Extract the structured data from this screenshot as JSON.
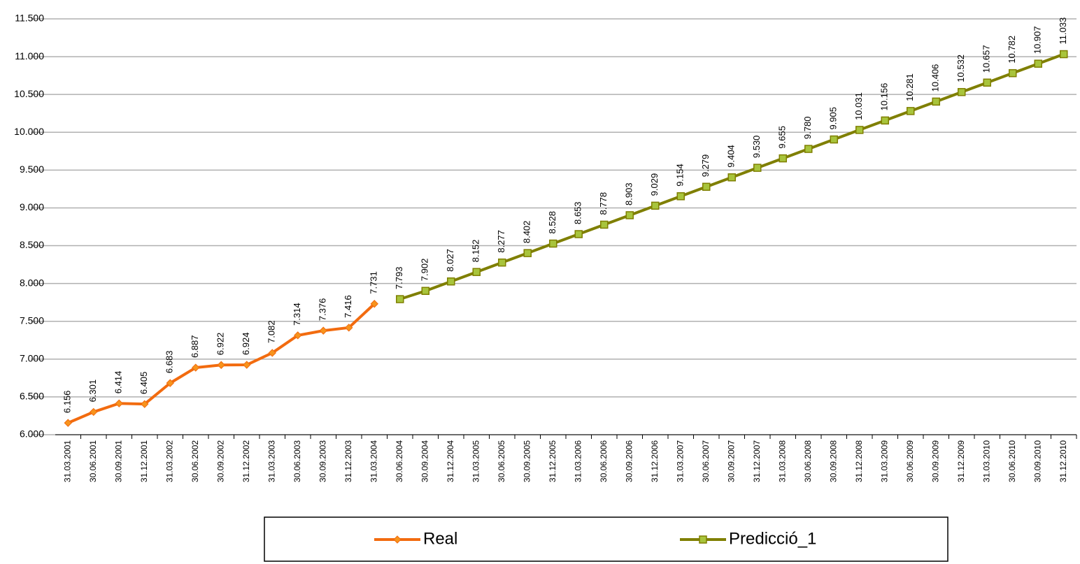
{
  "chart_data": {
    "type": "line",
    "categories": [
      "31.03.2001",
      "30.06.2001",
      "30.09.2001",
      "31.12.2001",
      "31.03.2002",
      "30.06.2002",
      "30.09.2002",
      "31.12.2002",
      "31.03.2003",
      "30.06.2003",
      "30.09.2003",
      "31.12.2003",
      "31.03.2004",
      "30.06.2004",
      "30.09.2004",
      "31.12.2004",
      "31.03.2005",
      "30.06.2005",
      "30.09.2005",
      "31.12.2005",
      "31.03.2006",
      "30.06.2006",
      "30.09.2006",
      "31.12.2006",
      "31.03.2007",
      "30.06.2007",
      "30.09.2007",
      "31.12.2007",
      "31.03.2008",
      "30.06.2008",
      "30.09.2008",
      "31.12.2008",
      "31.03.2009",
      "30.06.2009",
      "30.09.2009",
      "31.12.2009",
      "31.03.2010",
      "30.06.2010",
      "30.09.2010",
      "31.12.2010"
    ],
    "series": [
      {
        "name": "Real",
        "color": "#f26b0f",
        "marker": "diamond",
        "marker_color": "#f7941d",
        "values": [
          6156,
          6301,
          6414,
          6405,
          6683,
          6887,
          6922,
          6924,
          7082,
          7314,
          7376,
          7416,
          7731,
          null,
          null,
          null,
          null,
          null,
          null,
          null,
          null,
          null,
          null,
          null,
          null,
          null,
          null,
          null,
          null,
          null,
          null,
          null,
          null,
          null,
          null,
          null,
          null,
          null,
          null,
          null
        ],
        "value_labels": [
          "6.156",
          "6.301",
          "6.414",
          "6.405",
          "6.683",
          "6.887",
          "6.922",
          "6.924",
          "7.082",
          "7.314",
          "7.376",
          "7.416",
          "7.731",
          null,
          null,
          null,
          null,
          null,
          null,
          null,
          null,
          null,
          null,
          null,
          null,
          null,
          null,
          null,
          null,
          null,
          null,
          null,
          null,
          null,
          null,
          null,
          null,
          null,
          null,
          null
        ]
      },
      {
        "name": "Predicció_1",
        "color": "#7f7f00",
        "marker": "square",
        "marker_color": "#a8c43c",
        "values": [
          null,
          null,
          null,
          null,
          null,
          null,
          null,
          null,
          null,
          null,
          null,
          null,
          null,
          7793,
          7902,
          8027,
          8152,
          8277,
          8402,
          8528,
          8653,
          8778,
          8903,
          9029,
          9154,
          9279,
          9404,
          9530,
          9655,
          9780,
          9905,
          10031,
          10156,
          10281,
          10406,
          10532,
          10657,
          10782,
          10907,
          11033
        ],
        "value_labels": [
          null,
          null,
          null,
          null,
          null,
          null,
          null,
          null,
          null,
          null,
          null,
          null,
          null,
          "7.793",
          "7.902",
          "8.027",
          "8.152",
          "8.277",
          "8.402",
          "8.528",
          "8.653",
          "8.778",
          "8.903",
          "9.029",
          "9.154",
          "9.279",
          "9.404",
          "9.530",
          "9.655",
          "9.780",
          "9.905",
          "10.031",
          "10.156",
          "10.281",
          "10.406",
          "10.532",
          "10.657",
          "10.782",
          "10.907",
          "11.033"
        ]
      }
    ],
    "ylim": [
      6000,
      11500
    ],
    "yticks": [
      {
        "value": 6000,
        "label": "6.000"
      },
      {
        "value": 6500,
        "label": "6.500"
      },
      {
        "value": 7000,
        "label": "7.000"
      },
      {
        "value": 7500,
        "label": "7.500"
      },
      {
        "value": 8000,
        "label": "8.000"
      },
      {
        "value": 8500,
        "label": "8.500"
      },
      {
        "value": 9000,
        "label": "9.000"
      },
      {
        "value": 9500,
        "label": "9.500"
      },
      {
        "value": 10000,
        "label": "10.000"
      },
      {
        "value": 10500,
        "label": "10.500"
      },
      {
        "value": 11000,
        "label": "11.000"
      },
      {
        "value": 11500,
        "label": "11.500"
      }
    ],
    "grid": true,
    "legend": "bottom"
  }
}
